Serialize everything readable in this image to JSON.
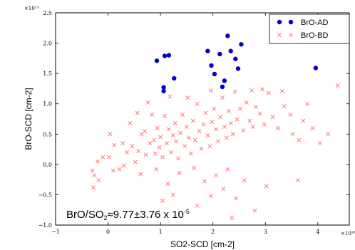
{
  "chart_data": {
    "type": "scatter",
    "xlabel": "SO2-SCD [cm-2]",
    "ylabel": "BrO-SCD [cm-2]",
    "x_exponent": "×10¹⁸",
    "y_exponent": "×10¹³",
    "xlim": [
      -1,
      4.6
    ],
    "ylim": [
      -1.0,
      2.5
    ],
    "x_ticks": [
      -1,
      0,
      1,
      2,
      3,
      4
    ],
    "y_ticks": [
      "-1.0",
      "-0.5",
      "0.0",
      "0.5",
      "1.0",
      "1.5",
      "2.0",
      "2.5"
    ],
    "legend_position": "top-right",
    "grid": false,
    "annotation": {
      "base": "BrO/SO",
      "sub": "2",
      "mid": "≈9.77±3.76 x 10",
      "sup": "-5"
    },
    "series": [
      {
        "name": "BrO-AD",
        "marker": "dot",
        "color": "#0000cc",
        "points": [
          [
            0.93,
            1.71
          ],
          [
            1.08,
            1.79
          ],
          [
            1.16,
            1.8
          ],
          [
            1.26,
            1.42
          ],
          [
            1.06,
            1.21
          ],
          [
            1.06,
            1.27
          ],
          [
            1.9,
            1.87
          ],
          [
            1.97,
            1.63
          ],
          [
            2.03,
            1.49
          ],
          [
            2.13,
            1.82
          ],
          [
            2.22,
            1.38
          ],
          [
            2.18,
            1.28
          ],
          [
            2.28,
            2.12
          ],
          [
            2.34,
            1.87
          ],
          [
            2.43,
            1.74
          ],
          [
            2.48,
            1.58
          ],
          [
            2.54,
            1.98
          ],
          [
            3.96,
            1.59
          ]
        ]
      },
      {
        "name": "BrO-BD",
        "marker": "x",
        "color": "#ff6b6b",
        "points": [
          [
            -0.3,
            -0.1
          ],
          [
            -0.26,
            -0.18
          ],
          [
            -0.28,
            -0.38
          ],
          [
            -0.2,
            0.05
          ],
          [
            -0.1,
            0.12
          ],
          [
            0.02,
            0.12
          ],
          [
            0.1,
            -0.1
          ],
          [
            0.12,
            0.32
          ],
          [
            0.22,
            -0.08
          ],
          [
            0.28,
            0.35
          ],
          [
            0.36,
            0.2
          ],
          [
            0.42,
            0.68
          ],
          [
            0.46,
            0.3
          ],
          [
            0.52,
            0.04
          ],
          [
            0.58,
            0.22
          ],
          [
            0.64,
            0.5
          ],
          [
            0.7,
            0.55
          ],
          [
            0.72,
            0.16
          ],
          [
            0.8,
            0.35
          ],
          [
            0.84,
            0.82
          ],
          [
            0.88,
            0.4
          ],
          [
            0.9,
            0.18
          ],
          [
            0.94,
            0.6
          ],
          [
            0.98,
            0.28
          ],
          [
            1.0,
            0.45
          ],
          [
            1.04,
            0.12
          ],
          [
            1.08,
            0.8
          ],
          [
            1.12,
            0.35
          ],
          [
            1.16,
            0.58
          ],
          [
            1.18,
            1.12
          ],
          [
            1.2,
            0.2
          ],
          [
            1.24,
            0.48
          ],
          [
            1.28,
            0.68
          ],
          [
            1.3,
            0.38
          ],
          [
            1.34,
            0.1
          ],
          [
            1.38,
            0.52
          ],
          [
            1.42,
            0.82
          ],
          [
            1.46,
            0.3
          ],
          [
            1.5,
            0.62
          ],
          [
            1.54,
            0.44
          ],
          [
            1.58,
            0.18
          ],
          [
            1.62,
            0.72
          ],
          [
            1.66,
            0.4
          ],
          [
            1.7,
            1.0
          ],
          [
            1.74,
            0.55
          ],
          [
            1.78,
            0.26
          ],
          [
            1.82,
            0.66
          ],
          [
            1.86,
            0.85
          ],
          [
            1.9,
            0.48
          ],
          [
            1.94,
            0.3
          ],
          [
            1.98,
            0.7
          ],
          [
            2.02,
            0.92
          ],
          [
            2.06,
            0.58
          ],
          [
            2.1,
            0.38
          ],
          [
            2.14,
            0.78
          ],
          [
            2.18,
            1.1
          ],
          [
            2.22,
            0.62
          ],
          [
            2.26,
            0.44
          ],
          [
            2.3,
            0.88
          ],
          [
            2.34,
            0.68
          ],
          [
            2.38,
            0.5
          ],
          [
            2.42,
            1.2
          ],
          [
            2.46,
            0.74
          ],
          [
            2.52,
            0.92
          ],
          [
            2.58,
            0.56
          ],
          [
            2.64,
            1.02
          ],
          [
            2.7,
            0.72
          ],
          [
            2.76,
            0.62
          ],
          [
            2.82,
            0.95
          ],
          [
            2.9,
            0.84
          ],
          [
            2.98,
            0.66
          ],
          [
            3.06,
            1.18
          ],
          [
            3.14,
            0.78
          ],
          [
            3.24,
            0.6
          ],
          [
            3.36,
            0.96
          ],
          [
            3.52,
            0.5
          ],
          [
            3.64,
            0.4
          ],
          [
            3.72,
            0.72
          ],
          [
            3.9,
            0.6
          ],
          [
            4.04,
            0.35
          ],
          [
            4.38,
            1.3
          ],
          [
            0.3,
            -0.02
          ],
          [
            0.62,
            -0.16
          ],
          [
            0.92,
            -0.08
          ],
          [
            1.14,
            -0.32
          ],
          [
            1.24,
            -0.5
          ],
          [
            1.36,
            -0.14
          ],
          [
            1.64,
            -0.06
          ],
          [
            1.84,
            -0.28
          ],
          [
            1.96,
            -0.52
          ],
          [
            2.06,
            -0.18
          ],
          [
            2.2,
            -0.4
          ],
          [
            2.28,
            -0.08
          ],
          [
            2.44,
            -0.56
          ],
          [
            2.6,
            -0.26
          ],
          [
            2.8,
            -0.76
          ],
          [
            3.02,
            -0.36
          ],
          [
            3.62,
            -0.26
          ],
          [
            1.04,
            -0.6
          ],
          [
            1.7,
            -0.68
          ],
          [
            2.36,
            -0.88
          ],
          [
            -0.18,
            -0.26
          ],
          [
            0.04,
            0.5
          ],
          [
            0.56,
            0.85
          ],
          [
            0.76,
            1.02
          ],
          [
            1.52,
            1.1
          ],
          [
            1.96,
            1.22
          ],
          [
            2.74,
            1.22
          ],
          [
            2.94,
            1.24
          ],
          [
            3.32,
            1.21
          ],
          [
            3.48,
            0.82
          ],
          [
            3.8,
            1.0
          ],
          [
            4.2,
            0.5
          ]
        ]
      }
    ]
  }
}
